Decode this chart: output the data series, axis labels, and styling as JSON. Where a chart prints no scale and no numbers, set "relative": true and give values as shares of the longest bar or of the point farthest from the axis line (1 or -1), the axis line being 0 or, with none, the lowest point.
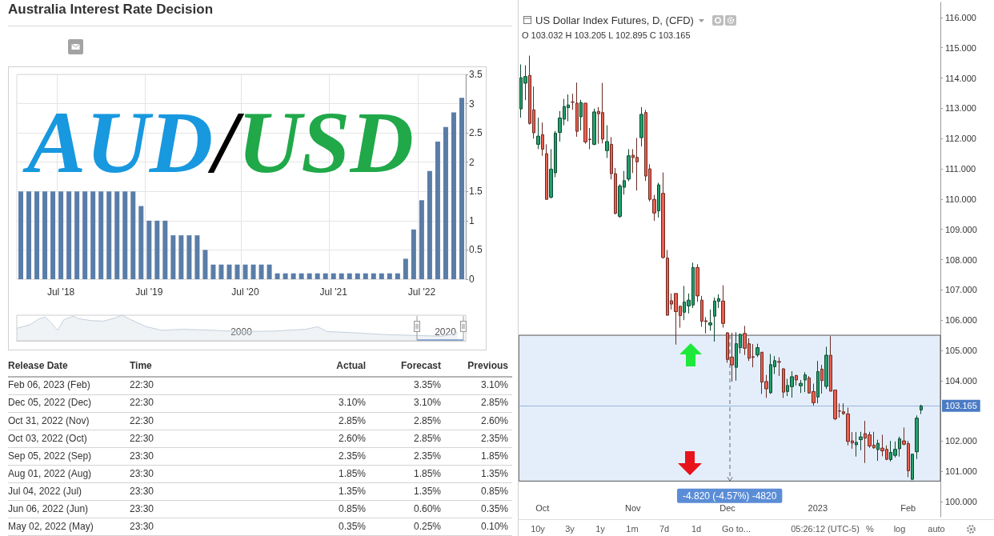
{
  "chart_data": [
    {
      "type": "bar",
      "title": "Australia Interest Rate Decision",
      "categories": [
        null,
        null,
        null,
        null,
        null,
        "Jul '18",
        null,
        null,
        null,
        null,
        null,
        null,
        null,
        null,
        null,
        null,
        "Jul '19",
        null,
        null,
        null,
        null,
        null,
        null,
        null,
        null,
        null,
        null,
        null,
        "Jul '20",
        null,
        null,
        null,
        null,
        null,
        null,
        null,
        null,
        null,
        null,
        "Jul '21",
        null,
        null,
        null,
        null,
        null,
        null,
        null,
        null,
        null,
        null,
        "Jul '22",
        null,
        null,
        null,
        null,
        null
      ],
      "values": [
        1.5,
        1.5,
        1.5,
        1.5,
        1.5,
        1.5,
        1.5,
        1.5,
        1.5,
        1.5,
        1.5,
        1.5,
        1.5,
        1.5,
        1.5,
        1.25,
        1,
        1,
        1,
        0.75,
        0.75,
        0.75,
        0.75,
        0.5,
        0.25,
        0.25,
        0.25,
        0.25,
        0.25,
        0.25,
        0.25,
        0.25,
        0.1,
        0.1,
        0.1,
        0.1,
        0.1,
        0.1,
        0.1,
        0.1,
        0.1,
        0.1,
        0.1,
        0.1,
        0.1,
        0.1,
        0.1,
        0.1,
        0.35,
        0.85,
        1.35,
        1.85,
        2.35,
        2.6,
        2.85,
        3.1
      ],
      "color": "#5a7da8",
      "ylim": [
        0,
        3.5
      ],
      "yticks": [
        0,
        0.5,
        1,
        1.5,
        2,
        2.5,
        3,
        3.5
      ],
      "grid": true
    },
    {
      "type": "area",
      "relative": true,
      "x": [
        1978.0,
        1979.3,
        1980.2,
        1980.8,
        1981.3,
        1982.0,
        1982.6,
        1983.5,
        1984.1,
        1985.3,
        1986.5,
        1987.7,
        1988.3,
        1989.2,
        1990.7,
        1992.2,
        1994.3,
        1997.3,
        2000.0,
        2003.3,
        2006.3,
        2007.5,
        2008.4,
        2010.8,
        2013.8,
        2016.8,
        2019.7,
        2021.2
      ],
      "values": [
        0.49,
        0.63,
        0.86,
        0.93,
        0.73,
        0.41,
        0.82,
        0.96,
        0.86,
        0.79,
        0.77,
        0.9,
        1,
        0.82,
        0.55,
        0.41,
        0.45,
        0.41,
        0.36,
        0.38,
        0.45,
        0.55,
        0.36,
        0.32,
        0.25,
        0.21,
        0.18,
        0.32
      ],
      "color": "#c3cfdb",
      "xlim": [
        1978,
        2022
      ],
      "xticks": [
        2000,
        2020
      ]
    },
    {
      "type": "other",
      "categories": [
        "Release Date",
        "Time",
        "Actual",
        "Forecast",
        "Previous"
      ],
      "cell_labels": [
        [
          "Feb 06, 2023 (Feb)",
          "22:30",
          null,
          "3.35%",
          "3.10%"
        ],
        [
          "Dec 05, 2022 (Dec)",
          "22:30",
          "3.10%",
          "3.10%",
          "2.85%"
        ],
        [
          "Oct 31, 2022 (Nov)",
          "22:30",
          "2.85%",
          "2.85%",
          "2.60%"
        ],
        [
          "Oct 03, 2022 (Oct)",
          "22:30",
          "2.60%",
          "2.85%",
          "2.35%"
        ],
        [
          "Sep 05, 2022 (Sep)",
          "23:30",
          "2.35%",
          "2.35%",
          "1.85%"
        ],
        [
          "Aug 01, 2022 (Aug)",
          "23:30",
          "1.85%",
          "1.85%",
          "1.35%"
        ],
        [
          "Jul 04, 2022 (Jul)",
          "23:30",
          "1.35%",
          "1.35%",
          "0.85%"
        ],
        [
          "Jun 06, 2022 (Jun)",
          "23:30",
          "0.85%",
          "0.60%",
          "0.35%"
        ],
        [
          "May 02, 2022 (May)",
          "23:30",
          "0.35%",
          "0.25%",
          "0.10%"
        ]
      ]
    },
    {
      "type": "candlestick",
      "title": "US Dollar Index Futures, D, (CFD)",
      "subtitle": "O 103.032 H 103.205 L 102.895 C 103.165",
      "categories": [
        null,
        null,
        null,
        null,
        null,
        "Oct",
        null,
        null,
        null,
        null,
        null,
        null,
        null,
        null,
        null,
        null,
        null,
        null,
        null,
        null,
        null,
        null,
        null,
        null,
        null,
        null,
        "Nov",
        null,
        null,
        null,
        null,
        null,
        null,
        null,
        null,
        null,
        null,
        null,
        null,
        null,
        null,
        null,
        null,
        null,
        null,
        null,
        null,
        null,
        "Dec",
        null,
        null,
        null,
        null,
        null,
        null,
        null,
        null,
        null,
        null,
        null,
        null,
        null,
        null,
        null,
        null,
        null,
        null,
        null,
        null,
        "2023",
        null,
        null,
        null,
        null,
        null,
        null,
        null,
        null,
        null,
        null,
        null,
        null,
        null,
        null,
        null,
        null,
        null,
        null,
        null,
        null,
        "Feb",
        null,
        null,
        null
      ],
      "ohlc": [
        [
          112.98,
          114.45,
          112.69,
          114.01
        ],
        [
          113.83,
          114.42,
          113.27,
          114.05
        ],
        [
          114.09,
          114.74,
          112.46,
          112.5
        ],
        [
          112.95,
          113.72,
          112.0,
          112.19
        ],
        [
          111.81,
          112.69,
          111.65,
          112.08
        ],
        [
          112.13,
          112.53,
          111.43,
          111.65
        ],
        [
          111.5,
          111.81,
          109.99,
          109.99
        ],
        [
          110.06,
          111.65,
          110.02,
          110.99
        ],
        [
          110.87,
          112.25,
          110.72,
          112.18
        ],
        [
          112.2,
          112.91,
          111.9,
          112.68
        ],
        [
          112.64,
          113.31,
          112.44,
          113.06
        ],
        [
          113.02,
          113.46,
          112.57,
          113.11
        ],
        [
          113.21,
          113.48,
          112.95,
          113.2
        ],
        [
          113.17,
          113.85,
          112.06,
          112.24
        ],
        [
          112.72,
          113.28,
          112.27,
          113.19
        ],
        [
          113.17,
          113.17,
          111.83,
          111.89
        ],
        [
          111.98,
          112.35,
          111.65,
          111.97
        ],
        [
          111.81,
          112.99,
          111.78,
          112.88
        ],
        [
          112.9,
          113.04,
          111.83,
          112.82
        ],
        [
          112.86,
          113.84,
          111.84,
          111.98
        ],
        [
          111.6,
          112.44,
          111.36,
          111.9
        ],
        [
          111.81,
          112.05,
          110.65,
          110.84
        ],
        [
          110.84,
          111.03,
          109.49,
          109.53
        ],
        [
          109.43,
          110.49,
          109.38,
          110.43
        ],
        [
          110.39,
          110.93,
          110.15,
          110.61
        ],
        [
          110.66,
          111.65,
          110.59,
          111.43
        ],
        [
          111.45,
          111.65,
          110.86,
          111.37
        ],
        [
          111.38,
          112.02,
          110.28,
          111.23
        ],
        [
          112.03,
          113.04,
          111.74,
          112.8
        ],
        [
          112.86,
          112.95,
          110.6,
          110.76
        ],
        [
          111.0,
          111.15,
          109.92,
          109.99
        ],
        [
          109.99,
          110.14,
          109.28,
          109.54
        ],
        [
          109.61,
          110.54,
          109.39,
          110.47
        ],
        [
          110.19,
          110.88,
          108.03,
          108.07
        ],
        [
          108.05,
          108.32,
          106.16,
          106.16
        ],
        [
          106.64,
          106.88,
          106.35,
          106.53
        ],
        [
          106.88,
          106.88,
          105.19,
          106.28
        ],
        [
          106.46,
          106.46,
          105.75,
          106.15
        ],
        [
          106.26,
          107.13,
          106.0,
          106.6
        ],
        [
          106.47,
          106.88,
          106.22,
          106.66
        ],
        [
          106.5,
          107.9,
          106.4,
          107.74
        ],
        [
          107.74,
          107.85,
          106.6,
          106.8
        ],
        [
          106.66,
          106.8,
          105.78,
          105.96
        ],
        [
          105.98,
          106.1,
          105.56,
          105.95
        ],
        [
          105.84,
          106.35,
          105.65,
          105.91
        ],
        [
          106.13,
          106.75,
          105.29,
          106.63
        ],
        [
          106.62,
          106.85,
          106.4,
          106.71
        ],
        [
          106.63,
          107.15,
          105.75,
          105.89
        ],
        [
          105.58,
          105.6,
          104.59,
          104.7
        ],
        [
          104.78,
          105.58,
          103.97,
          104.52
        ],
        [
          104.44,
          105.6,
          104.0,
          105.22
        ],
        [
          105.09,
          105.56,
          104.9,
          105.53
        ],
        [
          105.56,
          105.81,
          104.85,
          105.07
        ],
        [
          105.22,
          105.4,
          104.65,
          104.74
        ],
        [
          104.79,
          105.21,
          104.44,
          104.77
        ],
        [
          104.85,
          105.22,
          104.78,
          105.09
        ],
        [
          104.94,
          104.94,
          103.56,
          103.95
        ],
        [
          103.97,
          104.19,
          103.43,
          103.73
        ],
        [
          103.6,
          104.88,
          103.56,
          104.53
        ],
        [
          104.46,
          104.81,
          104.22,
          104.66
        ],
        [
          104.63,
          104.77,
          104.15,
          104.61
        ],
        [
          104.39,
          104.41,
          103.43,
          103.62
        ],
        [
          103.64,
          104.06,
          103.49,
          103.84
        ],
        [
          103.8,
          104.31,
          103.44,
          104.13
        ],
        [
          104.17,
          104.19,
          103.84,
          104.02
        ],
        [
          103.83,
          104.02,
          103.59,
          103.91
        ],
        [
          104.02,
          104.28,
          103.62,
          104.19
        ],
        [
          104.09,
          104.15,
          103.57,
          103.59
        ],
        [
          103.64,
          103.9,
          103.18,
          103.27
        ],
        [
          103.46,
          104.65,
          103.25,
          104.3
        ],
        [
          104.38,
          104.52,
          103.57,
          104.0
        ],
        [
          103.81,
          105.12,
          103.72,
          104.84
        ],
        [
          104.84,
          105.47,
          103.65,
          103.65
        ],
        [
          103.69,
          103.69,
          102.69,
          102.74
        ],
        [
          103.0,
          103.25,
          102.78,
          102.99
        ],
        [
          102.97,
          103.25,
          102.87,
          102.91
        ],
        [
          102.9,
          103.11,
          101.86,
          101.99
        ],
        [
          102.01,
          102.3,
          101.75,
          101.94
        ],
        [
          101.88,
          102.3,
          101.49,
          101.96
        ],
        [
          102.05,
          102.31,
          101.7,
          102.14
        ],
        [
          102.25,
          102.67,
          101.28,
          102.1
        ],
        [
          102.21,
          102.31,
          101.78,
          101.84
        ],
        [
          101.87,
          102.31,
          101.75,
          101.78
        ],
        [
          101.72,
          102.05,
          101.35,
          101.93
        ],
        [
          101.77,
          102.21,
          101.5,
          101.68
        ],
        [
          101.73,
          101.86,
          101.37,
          101.4
        ],
        [
          101.39,
          102.01,
          101.33,
          101.63
        ],
        [
          101.53,
          101.99,
          101.46,
          101.73
        ],
        [
          101.75,
          102.15,
          101.49,
          102.08
        ],
        [
          102.01,
          102.45,
          101.86,
          101.9
        ],
        [
          101.92,
          102.01,
          100.81,
          101.02
        ],
        [
          100.74,
          101.59,
          100.71,
          101.57
        ],
        [
          101.65,
          102.85,
          101.41,
          102.76
        ],
        [
          103.032,
          103.205,
          102.895,
          103.165
        ]
      ],
      "colors": [
        "#22a06b",
        "#22a06b",
        "#ec5f4f",
        "#ec5f4f",
        "#22a06b",
        "#ec5f4f",
        "#ec5f4f",
        "#22a06b",
        "#22a06b",
        "#22a06b",
        "#22a06b",
        "#22a06b",
        "#ec5f4f",
        "#ec5f4f",
        "#22a06b",
        "#ec5f4f",
        "#ec5f4f",
        "#22a06b",
        "#ec5f4f",
        "#ec5f4f",
        "#22a06b",
        "#ec5f4f",
        "#ec5f4f",
        "#22a06b",
        "#22a06b",
        "#22a06b",
        "#ec5f4f",
        "#ec5f4f",
        "#22a06b",
        "#ec5f4f",
        "#ec5f4f",
        "#ec5f4f",
        "#22a06b",
        "#ec5f4f",
        "#ec5f4f",
        "#ec5f4f",
        "#ec5f4f",
        "#ec5f4f",
        "#22a06b",
        "#22a06b",
        "#22a06b",
        "#ec5f4f",
        "#ec5f4f",
        "#ec5f4f",
        "#22a06b",
        "#22a06b",
        "#22a06b",
        "#ec5f4f",
        "#ec5f4f",
        "#ec5f4f",
        "#22a06b",
        "#22a06b",
        "#ec5f4f",
        "#ec5f4f",
        "#ec5f4f",
        "#22a06b",
        "#ec5f4f",
        "#ec5f4f",
        "#22a06b",
        "#22a06b",
        "#ec5f4f",
        "#ec5f4f",
        "#22a06b",
        "#22a06b",
        "#ec5f4f",
        "#22a06b",
        "#22a06b",
        "#ec5f4f",
        "#ec5f4f",
        "#22a06b",
        "#ec5f4f",
        "#22a06b",
        "#ec5f4f",
        "#ec5f4f",
        "#ec5f4f",
        "#ec5f4f",
        "#ec5f4f",
        "#ec5f4f",
        "#22a06b",
        "#22a06b",
        "#ec5f4f",
        "#ec5f4f",
        "#ec5f4f",
        "#22a06b",
        "#ec5f4f",
        "#ec5f4f",
        "#22a06b",
        "#22a06b",
        "#22a06b",
        "#ec5f4f",
        "#ec5f4f",
        "#22a06b",
        "#22a06b",
        "#22a06b"
      ],
      "ylim": [
        99.5,
        116.5
      ],
      "yticks": [
        {
          "value": 100,
          "label": "100.000"
        },
        {
          "value": 101,
          "label": "101.000"
        },
        {
          "value": 102,
          "label": "102.000"
        },
        {
          "value": 104,
          "label": "104.000"
        },
        {
          "value": 105,
          "label": "105.000"
        },
        {
          "value": 106,
          "label": "106.000"
        },
        {
          "value": 107,
          "label": "107.000"
        },
        {
          "value": 108,
          "label": "108.000"
        },
        {
          "value": 109,
          "label": "109.000"
        },
        {
          "value": 110,
          "label": "110.000"
        },
        {
          "value": 111,
          "label": "111.000"
        },
        {
          "value": 112,
          "label": "112.000"
        },
        {
          "value": 113,
          "label": "113.000"
        },
        {
          "value": 114,
          "label": "114.000"
        },
        {
          "value": 115,
          "label": "115.000"
        },
        {
          "value": 116,
          "label": "116.000"
        }
      ],
      "ref_lines": [
        {
          "axis": "y",
          "value": 103.165,
          "label": "103.165",
          "color": "#4b7bc4",
          "line_style": "dotted"
        }
      ],
      "bands": [
        {
          "axis": "y",
          "from": 100.68,
          "to": 105.5,
          "label": "-4.820 (-4.57%) -4820",
          "color": "#e4eefb"
        }
      ],
      "annotations": [
        "10y",
        "3y",
        "1y",
        "1m",
        "7d",
        "1d",
        "Go to...",
        "05:26:12 (UTC-5)",
        "%",
        "log",
        "auto"
      ]
    },
    {
      "type": "other",
      "annotations": [
        "AUD",
        "/",
        "USD"
      ],
      "colors": [
        "#1898de",
        "#000000",
        "#20a849"
      ]
    }
  ]
}
